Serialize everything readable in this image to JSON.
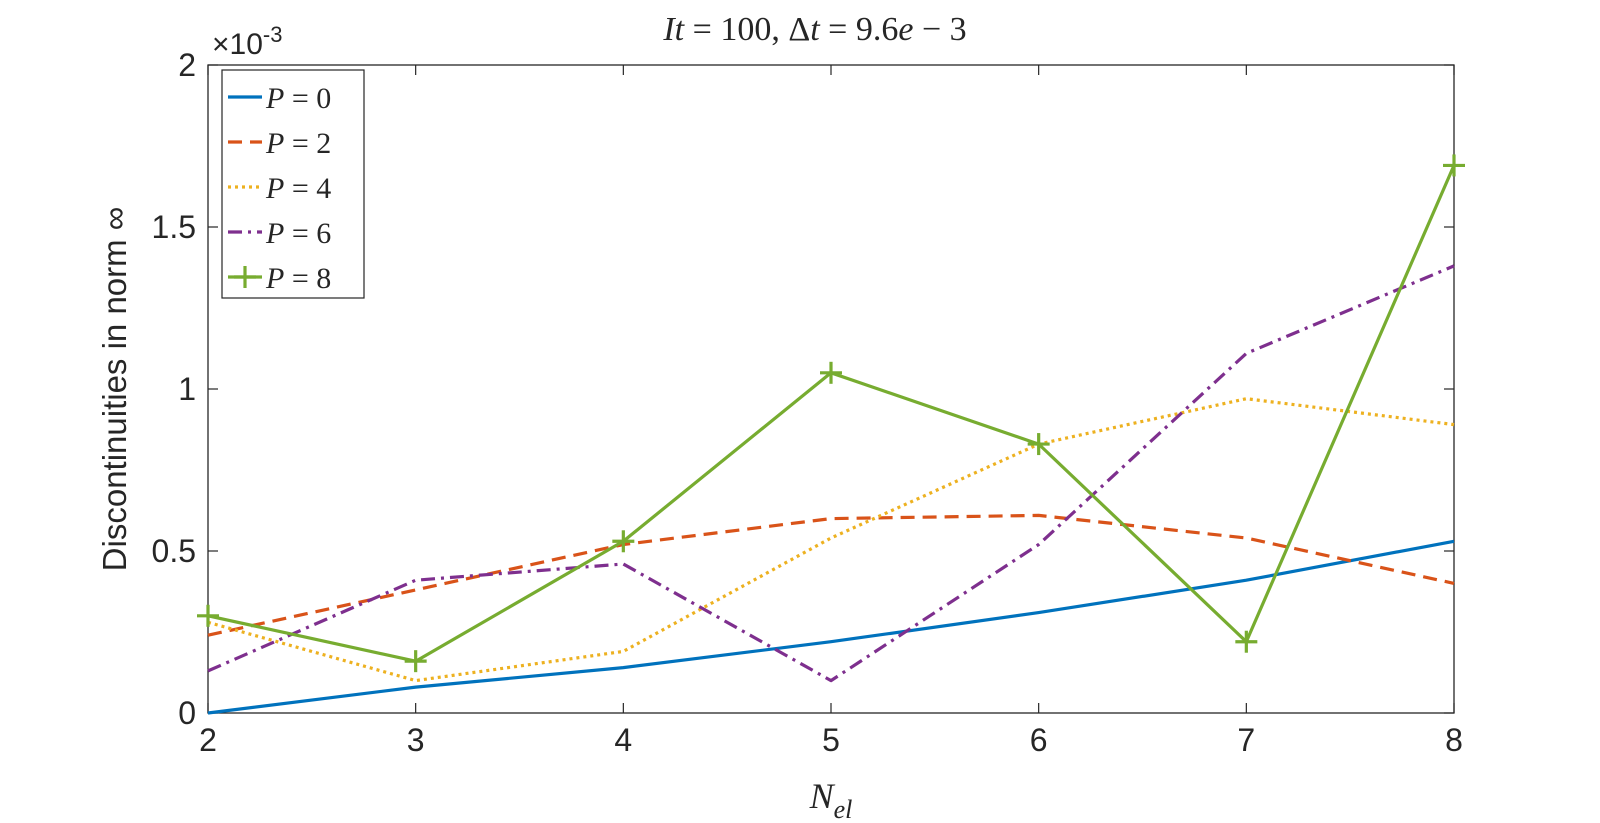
{
  "chart_data": {
    "type": "line",
    "title": {
      "lhs1": "It",
      "eq1": " = 100, ",
      "delta": "Δ",
      "lhs2": "t",
      "eq2": " = 9.6",
      "e": "e",
      "tail": " − 3"
    },
    "xlabel": {
      "base": "N",
      "sub": "el"
    },
    "ylabel": "Discontinuities in norm ∞",
    "y_exponent": {
      "prefix": "×10",
      "power": "-3"
    },
    "xlim": [
      2,
      8
    ],
    "ylim": [
      0,
      2
    ],
    "x_ticks": [
      "2",
      "3",
      "4",
      "5",
      "6",
      "7",
      "8"
    ],
    "y_ticks": [
      "0",
      "0.5",
      "1",
      "1.5",
      "2"
    ],
    "y_scale_note": "values shown in units of 10^-3",
    "legend_position": "top-left",
    "x": [
      2,
      3,
      4,
      5,
      6,
      7,
      8
    ],
    "series": [
      {
        "label_var": "P",
        "label_eq": " = 0",
        "color": "#0072BD",
        "style": "solid",
        "marker": "none",
        "values": [
          0.0,
          0.08,
          0.14,
          0.22,
          0.31,
          0.41,
          0.53
        ]
      },
      {
        "label_var": "P",
        "label_eq": " = 2",
        "color": "#D95319",
        "style": "dashed",
        "marker": "none",
        "values": [
          0.24,
          0.38,
          0.52,
          0.6,
          0.61,
          0.54,
          0.4
        ]
      },
      {
        "label_var": "P",
        "label_eq": " = 4",
        "color": "#EDB120",
        "style": "dotted",
        "marker": "none",
        "values": [
          0.28,
          0.1,
          0.19,
          0.54,
          0.83,
          0.97,
          0.89
        ]
      },
      {
        "label_var": "P",
        "label_eq": " = 6",
        "color": "#7E2F8E",
        "style": "dashdot",
        "marker": "none",
        "values": [
          0.13,
          0.41,
          0.46,
          0.1,
          0.52,
          1.11,
          1.38
        ]
      },
      {
        "label_var": "P",
        "label_eq": " = 8",
        "color": "#77AC30",
        "style": "solid",
        "marker": "plus",
        "values": [
          0.3,
          0.16,
          0.53,
          1.05,
          0.83,
          0.22,
          1.69
        ]
      }
    ]
  }
}
